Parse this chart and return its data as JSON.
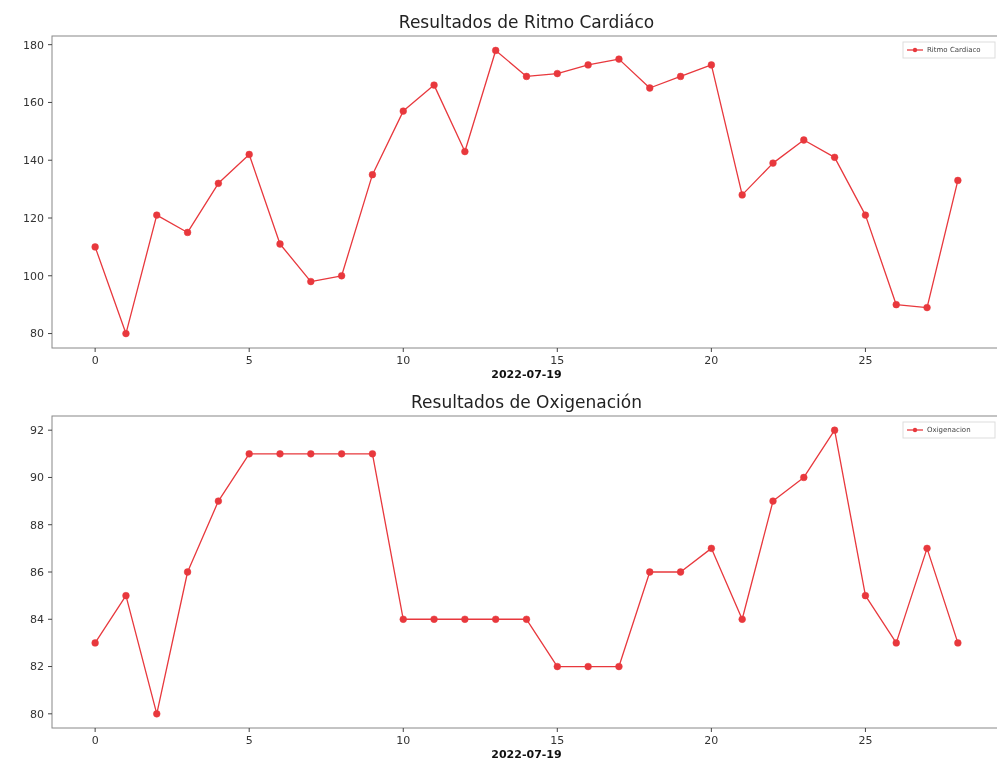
{
  "chart_data": [
    {
      "type": "line",
      "title": "Resultados de Ritmo Cardiáco",
      "xlabel": "2022-07-19",
      "x": [
        0,
        1,
        2,
        3,
        4,
        5,
        6,
        7,
        8,
        9,
        10,
        11,
        12,
        13,
        14,
        15,
        16,
        17,
        18,
        19,
        20,
        21,
        22,
        23,
        24,
        25,
        26,
        27,
        28
      ],
      "series": [
        {
          "name": "Ritmo Cardiaco",
          "color": "#e8383d",
          "values": [
            110,
            80,
            121,
            115,
            132,
            142,
            111,
            98,
            100,
            135,
            157,
            166,
            143,
            178,
            169,
            170,
            173,
            175,
            165,
            169,
            173,
            128,
            139,
            147,
            141,
            121,
            90,
            89,
            133
          ]
        }
      ],
      "xlim": [
        -1.4,
        29.4
      ],
      "xticks": [
        0,
        5,
        10,
        15,
        20,
        25
      ],
      "ylim": [
        75,
        183
      ],
      "yticks": [
        80,
        100,
        120,
        140,
        160,
        180
      ],
      "grid": false,
      "legend": "top right",
      "marker": "circle",
      "line_style": "solid"
    },
    {
      "type": "line",
      "title": "Resultados de Oxigenación",
      "xlabel": "2022-07-19",
      "x": [
        0,
        1,
        2,
        3,
        4,
        5,
        6,
        7,
        8,
        9,
        10,
        11,
        12,
        13,
        14,
        15,
        16,
        17,
        18,
        19,
        20,
        21,
        22,
        23,
        24,
        25,
        26,
        27,
        28
      ],
      "series": [
        {
          "name": "Oxigenacion",
          "color": "#e8383d",
          "values": [
            83,
            85,
            80,
            86,
            89,
            91,
            91,
            91,
            91,
            91,
            84,
            84,
            84,
            84,
            84,
            82,
            82,
            82,
            86,
            86,
            87,
            84,
            89,
            90,
            92,
            85,
            83,
            87,
            83
          ]
        }
      ],
      "xlim": [
        -1.4,
        29.4
      ],
      "xticks": [
        0,
        5,
        10,
        15,
        20,
        25
      ],
      "ylim": [
        79.4,
        92.6
      ],
      "yticks": [
        80,
        82,
        84,
        86,
        88,
        90,
        92
      ],
      "grid": false,
      "legend": "top right",
      "marker": "circle",
      "line_style": "solid"
    }
  ]
}
